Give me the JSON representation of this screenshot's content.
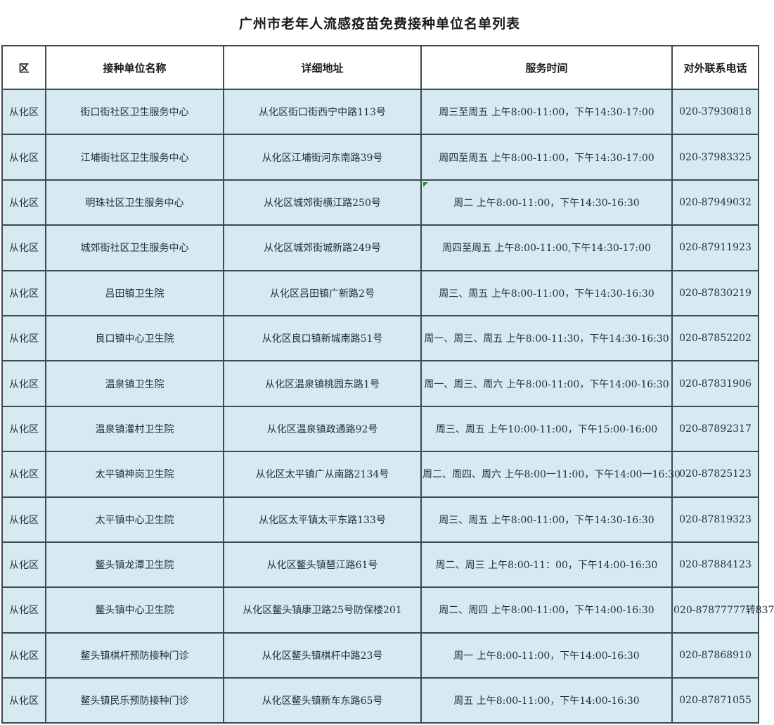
{
  "title": "广州市老年人流感疫苗免费接种单位名单列表",
  "table": {
    "columns": [
      "区",
      "接种单位名称",
      "详细地址",
      "服务时间",
      "对外联系电话"
    ],
    "rows": [
      [
        "从化区",
        "街口街社区卫生服务中心",
        "从化区街口街西宁中路113号",
        "周三至周五 上午8:00-11:00，下午14:30-17:00",
        "020-37930818"
      ],
      [
        "从化区",
        "江埔街社区卫生服务中心",
        "从化区江埔街河东南路39号",
        "周四至周五 上午8:00-11:00，下午14:30-17:00",
        "020-37983325"
      ],
      [
        "从化区",
        "明珠社区卫生服务中心",
        "从化区城郊街横江路250号",
        "周二 上午8:00-11:00，下午14:30-16:30",
        "020-87949032"
      ],
      [
        "从化区",
        "城郊街社区卫生服务中心",
        "从化区城郊街城新路249号",
        "周四至周五 上午8:00-11:00,下午14:30-17:00",
        "020-87911923"
      ],
      [
        "从化区",
        "吕田镇卫生院",
        "从化区吕田镇广新路2号",
        "周三、周五 上午8:00-11:00，下午14:30-16:30",
        "020-87830219"
      ],
      [
        "从化区",
        "良口镇中心卫生院",
        "从化区良口镇新城南路51号",
        "周一、周三、周五 上午8:00-11:30，下午14:30-16:30",
        "020-87852202"
      ],
      [
        "从化区",
        "温泉镇卫生院",
        "从化区温泉镇桃园东路1号",
        "周一、周三、周六 上午8:00-11:00，下午14:00-16:30",
        "020-87831906"
      ],
      [
        "从化区",
        "温泉镇灌村卫生院",
        "从化区温泉镇政通路92号",
        "周三、周五 上午10:00-11:00，下午15:00-16:00",
        "020-87892317"
      ],
      [
        "从化区",
        "太平镇神岗卫生院",
        "从化区太平镇广从南路2134号",
        "周二、周四、周六 上午8:00一11:00，下午14:00一16:30",
        "020-87825123"
      ],
      [
        "从化区",
        "太平镇中心卫生院",
        "从化区太平镇太平东路133号",
        "周三、周五 上午8:00-11:00，下午14:30-16:30",
        "020-87819323"
      ],
      [
        "从化区",
        "鳌头镇龙潭卫生院",
        "从化区鳌头镇琶江路61号",
        "周二、周三 上午8:00-11：00，下午14:00-16:30",
        "020-87884123"
      ],
      [
        "从化区",
        "鳌头镇中心卫生院",
        "从化区鳌头镇康卫路25号防保楼201",
        "周二、周四 上午8:00-11:00，下午14:00-16:30",
        "020-87877777转837"
      ],
      [
        "从化区",
        "鳌头镇棋杆预防接种门诊",
        "从化区鳌头镇棋杆中路23号",
        "周一 上午8:00-11:00，下午14:00-16:30",
        "020-87868910"
      ],
      [
        "从化区",
        "鳌头镇民乐预防接种门诊",
        "从化区鳌头镇新车东路65号",
        "周五 上午8:00-11:00，下午14:00-16:30",
        "020-87871055"
      ]
    ]
  },
  "colors": {
    "cell_bg": "#d7e9f1",
    "grid": "#3d4953",
    "header_bg": "#ffffff",
    "text_dark": "#1a1a1a",
    "text_cell": "#223039",
    "marker": "#149a2e"
  }
}
